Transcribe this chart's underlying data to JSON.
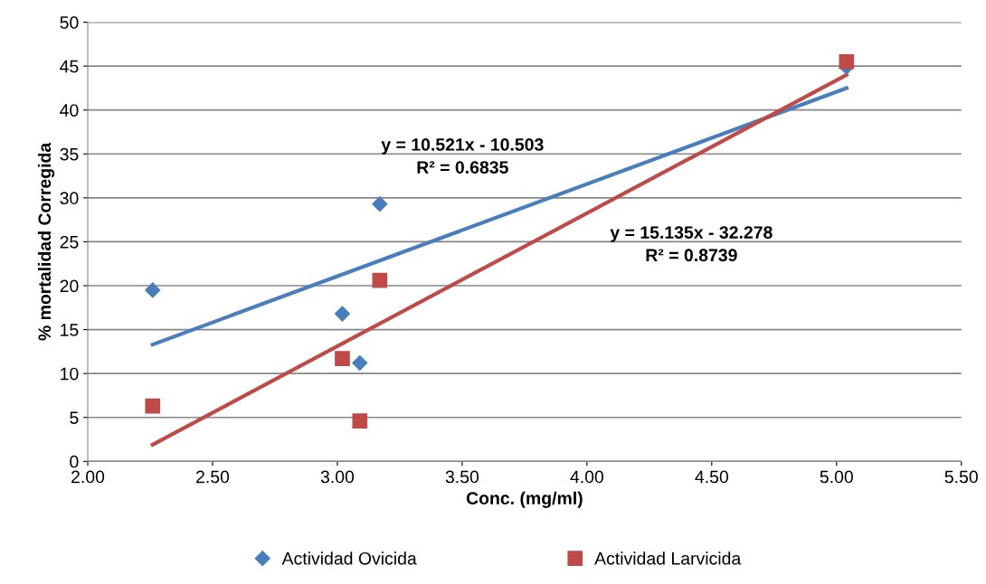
{
  "chart_data": {
    "type": "scatter",
    "xlabel": "Conc. (mg/ml)",
    "ylabel": "% mortalidad Corregida",
    "series": [
      {
        "name": "Actividad Ovicida",
        "color": "#4a7ebb",
        "marker": "diamond",
        "x": [
          2.26,
          3.02,
          3.09,
          3.17,
          5.04
        ],
        "values": [
          19.5,
          16.8,
          11.2,
          29.3,
          44.9
        ]
      },
      {
        "name": "Actividad Larvicida",
        "color": "#be4b48",
        "marker": "square",
        "x": [
          2.26,
          3.02,
          3.09,
          3.17,
          5.04
        ],
        "values": [
          6.3,
          11.7,
          4.6,
          20.6,
          45.5
        ]
      },
      {
        "type": "line",
        "color": "#4a7ebb",
        "marker": "none",
        "x": [
          2.26,
          5.04
        ],
        "values": [
          13.3,
          42.5
        ]
      },
      {
        "type": "line",
        "color": "#be4b48",
        "marker": "none",
        "x": [
          2.26,
          5.04
        ],
        "values": [
          1.9,
          44.0
        ]
      }
    ],
    "annotations": [
      "y = 10.521x - 10.503\nR² = 0.6835",
      "y = 15.135x - 32.278\nR² = 0.8739"
    ],
    "xlim": [
      2.0,
      5.5
    ],
    "xticks": [
      {
        "value": 2.0,
        "label": "2.00"
      },
      {
        "value": 2.5,
        "label": "2.50"
      },
      {
        "value": 3.0,
        "label": "3.00"
      },
      {
        "value": 3.5,
        "label": "3.50"
      },
      {
        "value": 4.0,
        "label": "4.00"
      },
      {
        "value": 4.5,
        "label": "4.50"
      },
      {
        "value": 5.0,
        "label": "5.00"
      },
      {
        "value": 5.5,
        "label": "5.50"
      }
    ],
    "ylim": [
      0,
      50
    ],
    "yticks": [
      0,
      5,
      10,
      15,
      20,
      25,
      30,
      35,
      40,
      45,
      50
    ],
    "grid": "y",
    "legend": "bottom"
  }
}
